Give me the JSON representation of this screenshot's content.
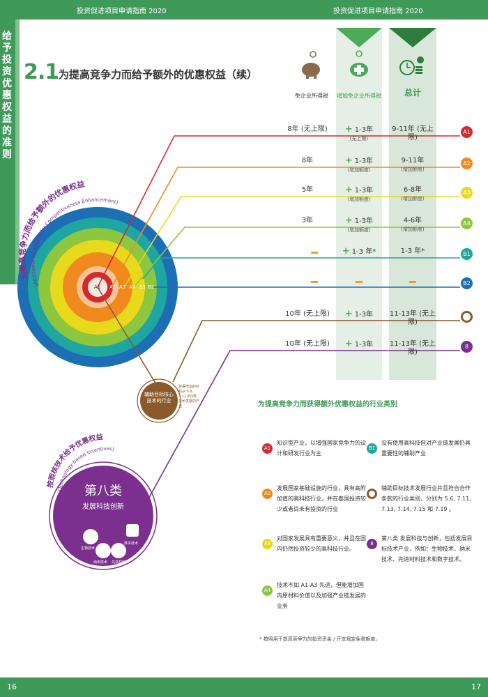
{
  "header": {
    "left": "投资促进项目申请指南 2020",
    "right": "投资促进项目申请指南 2020"
  },
  "footer": {
    "left_page": "16",
    "right_page": "17"
  },
  "side_tab": "给予投资优惠权益的准则",
  "section": {
    "number": "2.1",
    "title": "为提高竞争力而给予额外的优惠权益（续）"
  },
  "columns": {
    "c1": "免企业所得税",
    "c2": "增加免企业所得税",
    "c3": "总计"
  },
  "rows": [
    {
      "id": "A1",
      "color": "#d7282f",
      "c1": "8年 (无上限)",
      "c2": "1-3年",
      "c2_sub": "(无上限)",
      "c3": "9-11年 (无上限)"
    },
    {
      "id": "A2",
      "color": "#f08a1e",
      "c1": "8年",
      "c2": "1-3年",
      "c2_sub": "(增加额度)",
      "c3": "9-11年",
      "c3_sub": "(增加额度)"
    },
    {
      "id": "A3",
      "color": "#e9d91c",
      "c1": "5年",
      "c2": "1-3年",
      "c2_sub": "(增加额度)",
      "c3": "6-8年",
      "c3_sub": "(增加额度)"
    },
    {
      "id": "A4",
      "color": "#8dc63f",
      "c1": "3年",
      "c2": "1-3年",
      "c2_sub": "(增加额度)",
      "c3": "4-6年",
      "c3_sub": "(增加额度)"
    },
    {
      "id": "B1",
      "color": "#1fa6a0",
      "c1": "",
      "c2": "1-3 年*",
      "c3": "1-3 年*"
    },
    {
      "id": "B2",
      "color": "#1c6fb5",
      "c1": "",
      "c2": "",
      "c3": ""
    },
    {
      "id": "",
      "color": "#8b5a2b",
      "c1": "10年 (无上限)",
      "c2": "1-3年",
      "c3": "11-13年 (无上限)"
    },
    {
      "id": "8",
      "color": "#7b2f8e",
      "c1": "10年 (无上限)",
      "c2": "1-3年",
      "c3": "11-13年 (无上限)"
    }
  ],
  "circle": {
    "arc_title_cn": "为提高竞争力而给予额外的优惠权益",
    "arc_title_en": "(Additional Incentives for Competitiveness Enhancement)",
    "labels": [
      "A1",
      "A2",
      "A3",
      "A4",
      "B1",
      "B2"
    ]
  },
  "brown_node": "辅助目标核心技术的行业",
  "brown_caption": "获得增加的补贴从 5.6, 7.11 的3类技术发展的产业",
  "tech": {
    "arc_title_cn": "按照核技术给予优惠权益",
    "arc_title_en": "(Technology-based Incentives)",
    "title": "第八类",
    "subtitle": "发展科技创新",
    "icons": [
      "生物技术",
      "纳米技术",
      "先进材料",
      "数字技术"
    ]
  },
  "legend": {
    "title": "为提高竞争力而获得额外优惠权益的行业类别",
    "items": [
      {
        "id": "A1",
        "color": "#d7282f",
        "text": "知识型产业，以增强国家竞争力的设计和研发行业为主"
      },
      {
        "id": "B1",
        "color": "#1fa6a0",
        "text": "没有使用高科技但对产业链发展仍具重要性的辅助产业"
      },
      {
        "id": "A2",
        "color": "#f08a1e",
        "text": "发展国家基础设施的行业，具有高附加值的高科技行业，并在泰国投资较少或者尚未有投资的行业"
      },
      {
        "id": "",
        "color": "#8b5a2b",
        "text": "辅助目标技术发展行业并且符合合作条款的行业类别，分别为 5.6, 7.11, 7.13, 7.14, 7.15 和 7.19 。"
      },
      {
        "id": "A3",
        "color": "#e9d91c",
        "text": "对国家发展具有重要意义，并且在国内仍然投资较少的高科技行业。"
      },
      {
        "id": "8",
        "color": "#7b2f8e",
        "text": "第八类 发展科技与创新，包括发展目标技术产业，例如：生物技术、纳米技术、先进材料技术和数字技术。"
      },
      {
        "id": "A4",
        "color": "#8dc63f",
        "text": "技术不如 A1-A3 先进，但能增加国内原材料价值以及加强产业链发展的业务"
      }
    ]
  },
  "footnote": "* 按照用于提高竞争力的投资资金 / 开支规定免税额度。"
}
